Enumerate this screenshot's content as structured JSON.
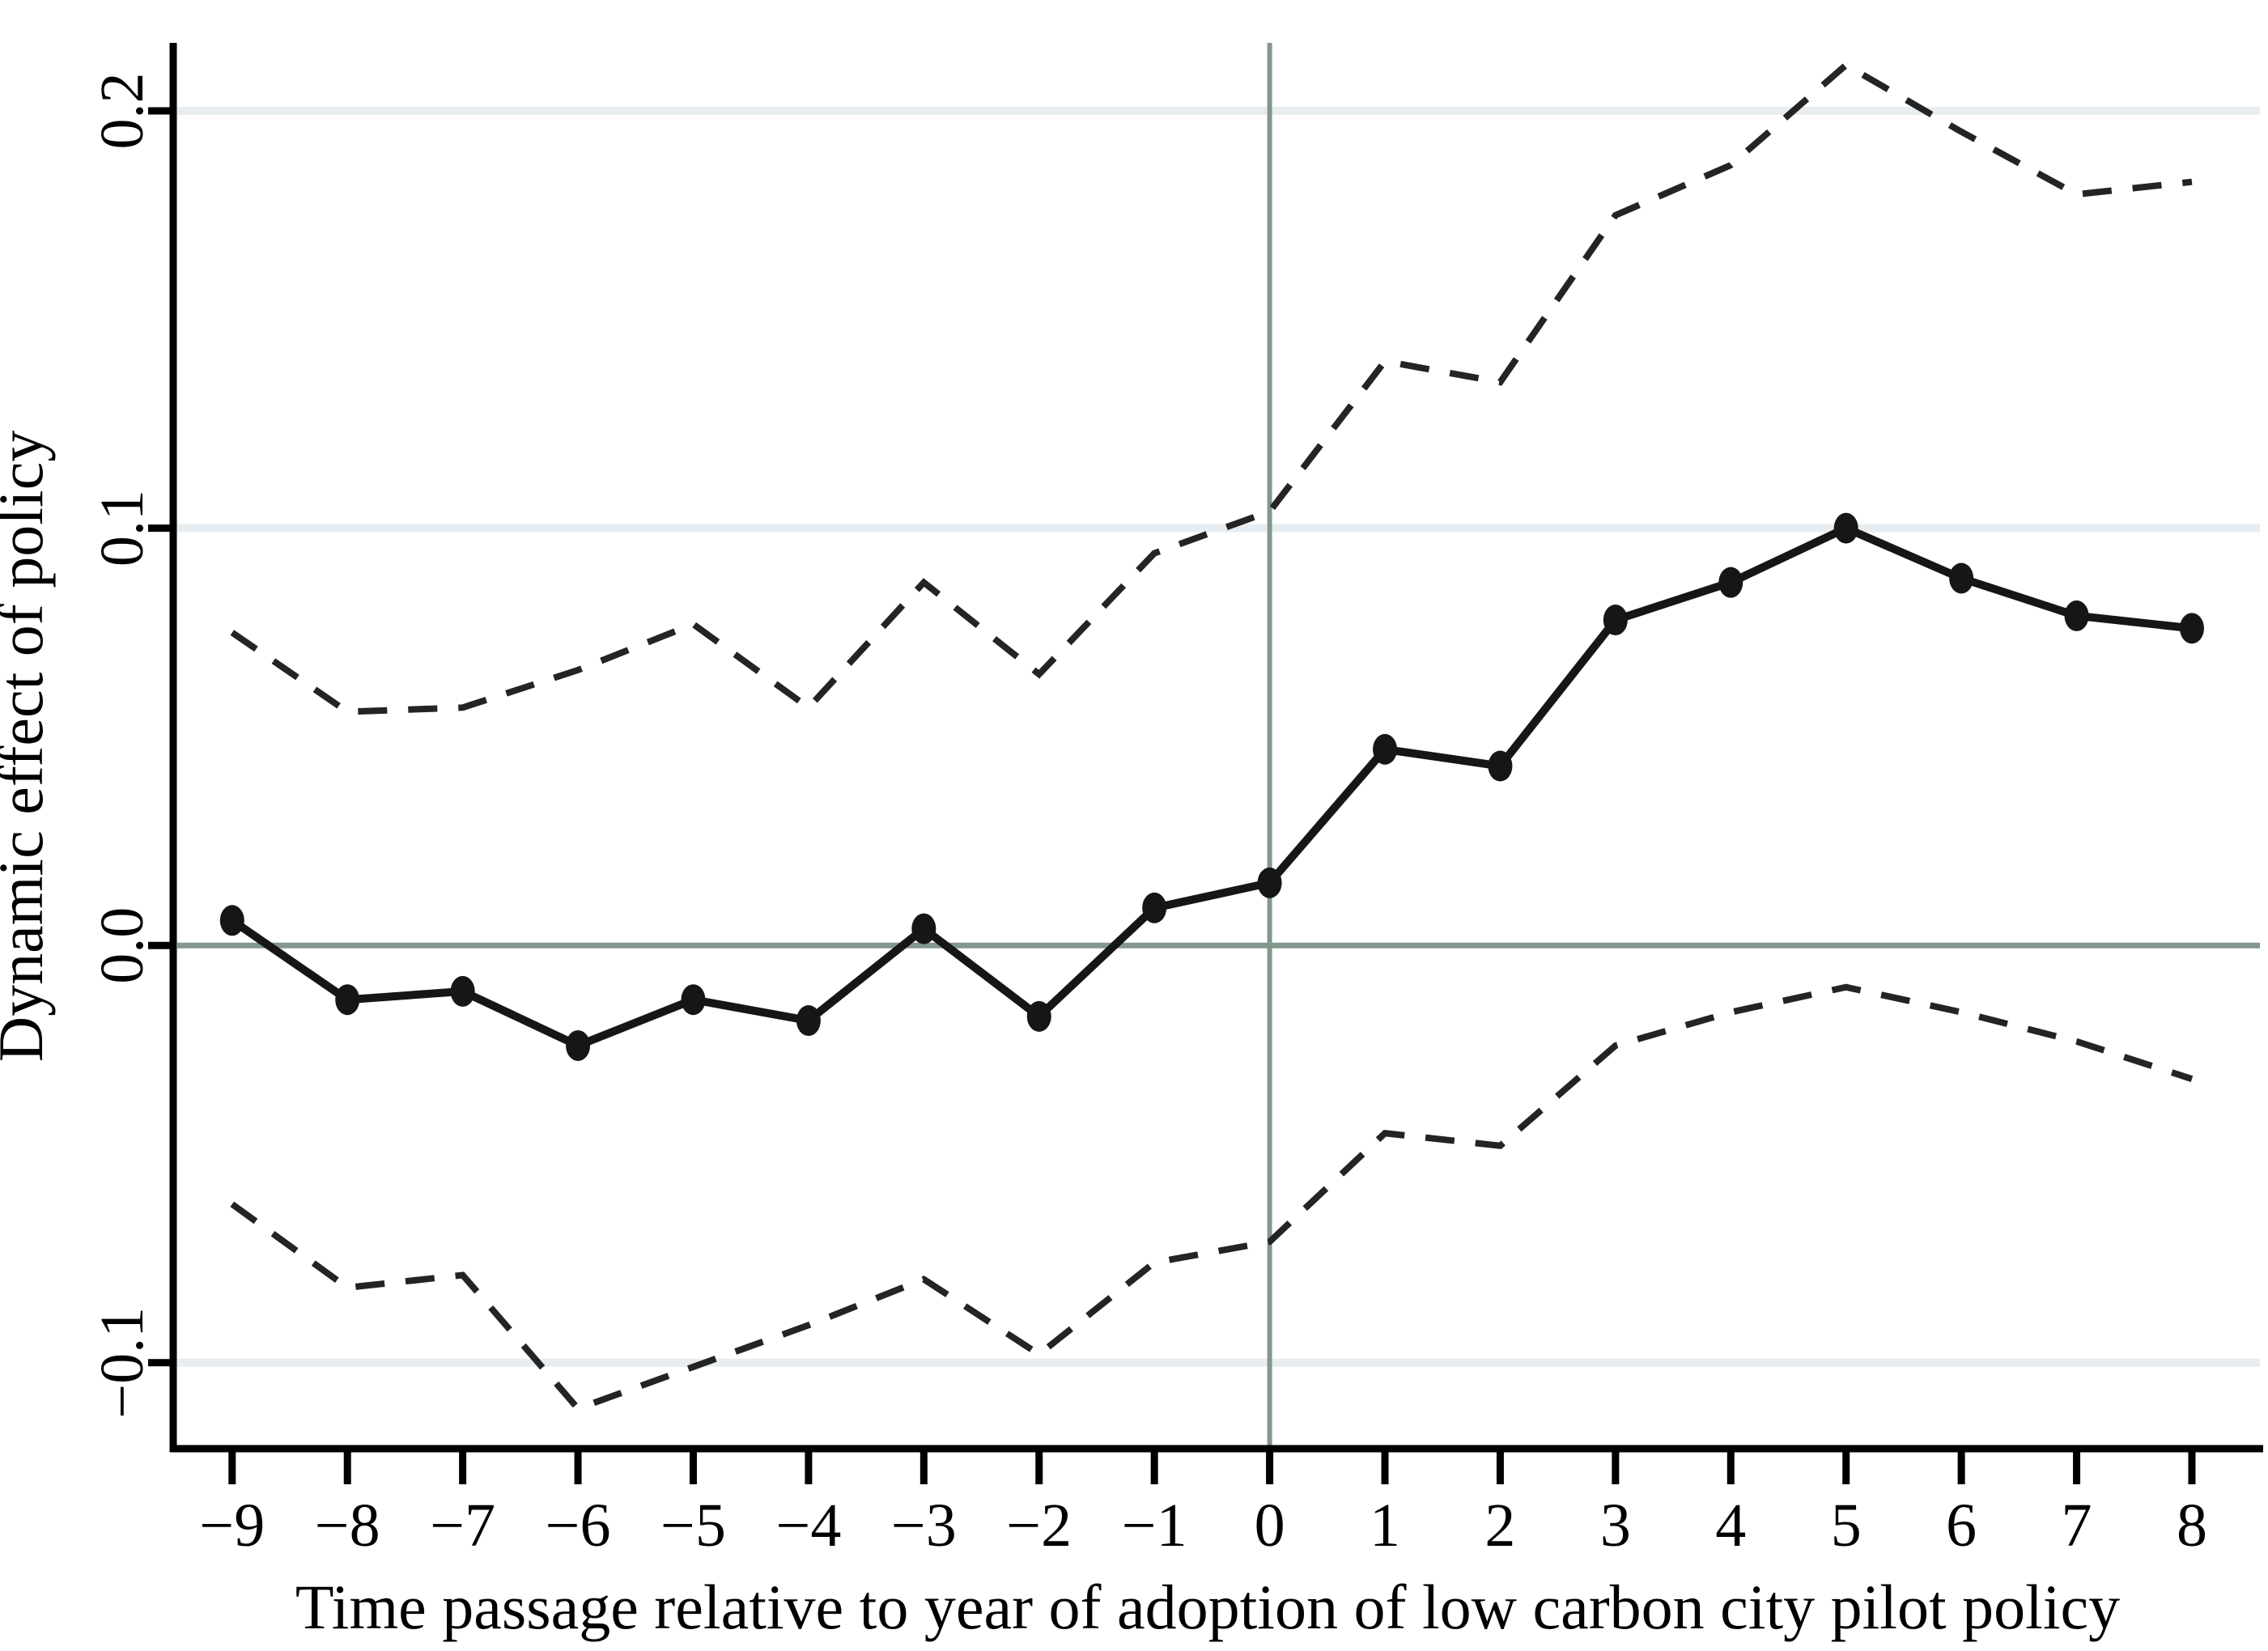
{
  "chart_data": {
    "type": "line",
    "title": "",
    "xlabel": "Time passage relative to year of adoption of low carbon city pilot policy",
    "ylabel": "Dynamic effect of policy",
    "x": [
      -9,
      -8,
      -7,
      -6,
      -5,
      -4,
      -3,
      -2,
      -1,
      0,
      1,
      2,
      3,
      4,
      5,
      6,
      7,
      8
    ],
    "x_tick_labels": [
      "−9",
      "−8",
      "−7",
      "−6",
      "−5",
      "−4",
      "−3",
      "−2",
      "−1",
      "0",
      "1",
      "2",
      "3",
      "4",
      "5",
      "6",
      "7",
      "8"
    ],
    "y_ticks": [
      {
        "value": 0.2,
        "label": "0.2"
      },
      {
        "value": 0.1,
        "label": "0.1"
      },
      {
        "value": 0.0,
        "label": "0.0"
      },
      {
        "value": -0.1,
        "label": "−0.1"
      }
    ],
    "xlim": [
      -9.49,
      8.59
    ],
    "ylim": [
      -0.1206,
      0.2163
    ],
    "grid": true,
    "legend": "none",
    "reference_lines": {
      "vertical_x": 0,
      "horizontal_y": 0
    },
    "series": [
      {
        "name": "point-estimate",
        "style": "solid-with-markers",
        "values": [
          0.006,
          -0.013,
          -0.011,
          -0.024,
          -0.013,
          -0.018,
          0.004,
          -0.017,
          0.009,
          0.015,
          0.047,
          0.043,
          0.078,
          0.087,
          0.1,
          0.088,
          0.079,
          0.076
        ]
      },
      {
        "name": "ci-upper",
        "style": "dashed",
        "values": [
          0.075,
          0.056,
          0.057,
          0.066,
          0.077,
          0.057,
          0.087,
          0.065,
          0.094,
          0.104,
          0.14,
          0.135,
          0.175,
          0.187,
          0.211,
          0.195,
          0.18,
          0.183
        ]
      },
      {
        "name": "ci-lower",
        "style": "dashed",
        "values": [
          -0.062,
          -0.082,
          -0.079,
          -0.111,
          -0.101,
          -0.091,
          -0.08,
          -0.098,
          -0.076,
          -0.071,
          -0.045,
          -0.048,
          -0.024,
          -0.016,
          -0.01,
          -0.016,
          -0.023,
          -0.032
        ]
      }
    ],
    "colors": {
      "estimate_line": "#161616",
      "ci_line": "#242424",
      "gridline": "#e7edf0",
      "reference_line": "#84978d",
      "axis": "#000000",
      "text": "#000000"
    }
  }
}
